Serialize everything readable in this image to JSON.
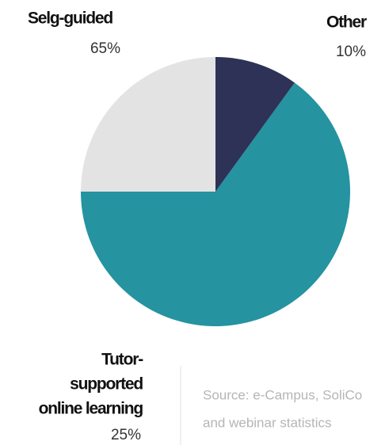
{
  "chart_data": {
    "type": "pie",
    "series": [
      {
        "name": [
          "Other"
        ],
        "color": "#2e3257",
        "values": 10,
        "value_labels": "10%"
      },
      {
        "name": [
          "Selg-guided"
        ],
        "color": "#2593a0",
        "values": 65,
        "value_labels": "65%"
      },
      {
        "name": [
          "Tutor-",
          "supported",
          "online learning"
        ],
        "color": "#e3e3e3",
        "values": 25,
        "value_labels": "25%"
      }
    ],
    "source": [
      "Source: e-Campus, SoliCo",
      "and webinar statistics"
    ]
  }
}
